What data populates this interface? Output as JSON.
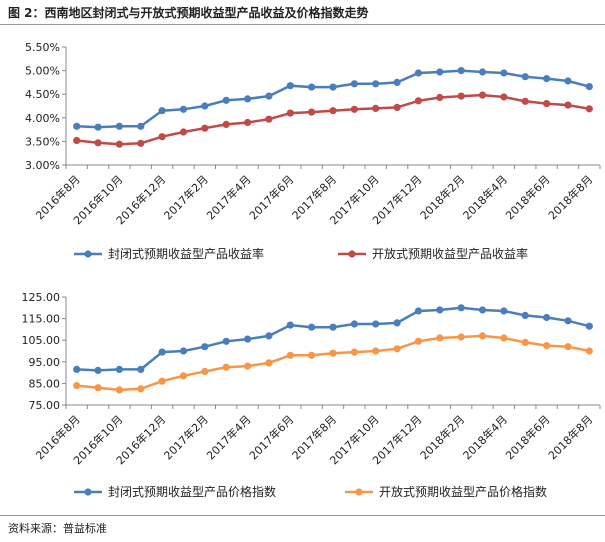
{
  "figure_title": "图 2：西南地区封闭式与开放式预期收益型产品收益及价格指数走势",
  "source_note": "资料来源：普益标准",
  "chart_data": [
    {
      "type": "line",
      "categories": [
        "2016年8月",
        "2016年9月",
        "2016年10月",
        "2016年11月",
        "2016年12月",
        "2017年1月",
        "2017年2月",
        "2017年3月",
        "2017年4月",
        "2017年5月",
        "2017年6月",
        "2017年7月",
        "2017年8月",
        "2017年9月",
        "2017年10月",
        "2017年11月",
        "2017年12月",
        "2018年1月",
        "2018年2月",
        "2018年3月",
        "2018年4月",
        "2018年5月",
        "2018年6月",
        "2018年7月",
        "2018年8月"
      ],
      "x_tick_labels": [
        "2016年8月",
        "2016年10月",
        "2016年12月",
        "2017年2月",
        "2017年4月",
        "2017年6月",
        "2017年8月",
        "2017年10月",
        "2017年12月",
        "2018年2月",
        "2018年4月",
        "2018年6月",
        "2018年8月"
      ],
      "y_tick_labels": [
        "3.00%",
        "3.50%",
        "4.00%",
        "4.50%",
        "5.00%",
        "5.50%"
      ],
      "ylim": [
        3.0,
        5.5
      ],
      "series": [
        {
          "name": "封闭式预期收益型产品收益率",
          "color": "#4a7ebb",
          "values": [
            3.82,
            3.8,
            3.82,
            3.82,
            4.15,
            4.18,
            4.25,
            4.37,
            4.4,
            4.46,
            4.68,
            4.65,
            4.65,
            4.72,
            4.72,
            4.75,
            4.95,
            4.97,
            5.0,
            4.97,
            4.95,
            4.87,
            4.83,
            4.78,
            4.66
          ]
        },
        {
          "name": "开放式预期收益型产品收益率",
          "color": "#be4b48",
          "values": [
            3.52,
            3.47,
            3.44,
            3.46,
            3.6,
            3.7,
            3.78,
            3.86,
            3.9,
            3.97,
            4.1,
            4.12,
            4.15,
            4.18,
            4.2,
            4.22,
            4.36,
            4.43,
            4.46,
            4.48,
            4.44,
            4.35,
            4.3,
            4.27,
            4.19
          ]
        }
      ]
    },
    {
      "type": "line",
      "categories": [
        "2016年8月",
        "2016年9月",
        "2016年10月",
        "2016年11月",
        "2016年12月",
        "2017年1月",
        "2017年2月",
        "2017年3月",
        "2017年4月",
        "2017年5月",
        "2017年6月",
        "2017年7月",
        "2017年8月",
        "2017年9月",
        "2017年10月",
        "2017年11月",
        "2017年12月",
        "2018年1月",
        "2018年2月",
        "2018年3月",
        "2018年4月",
        "2018年5月",
        "2018年6月",
        "2018年7月",
        "2018年8月"
      ],
      "x_tick_labels": [
        "2016年8月",
        "2016年10月",
        "2016年12月",
        "2017年2月",
        "2017年4月",
        "2017年6月",
        "2017年8月",
        "2017年10月",
        "2017年12月",
        "2018年2月",
        "2018年4月",
        "2018年6月",
        "2018年8月"
      ],
      "y_tick_labels": [
        "75.00",
        "85.00",
        "95.00",
        "105.00",
        "115.00",
        "125.00"
      ],
      "ylim": [
        75,
        125
      ],
      "series": [
        {
          "name": "封闭式预期收益型产品价格指数",
          "color": "#4a7ebb",
          "values": [
            91.5,
            91.0,
            91.5,
            91.5,
            99.5,
            100.0,
            102.0,
            104.5,
            105.5,
            107.0,
            112.0,
            111.0,
            111.0,
            112.5,
            112.5,
            113.0,
            118.5,
            119.0,
            120.0,
            119.0,
            118.5,
            116.5,
            115.5,
            114.0,
            111.5
          ]
        },
        {
          "name": "开放式预期收益型产品价格指数",
          "color": "#f79646",
          "values": [
            84.0,
            83.0,
            82.0,
            82.5,
            86.0,
            88.5,
            90.5,
            92.5,
            93.0,
            94.5,
            98.0,
            98.0,
            99.0,
            99.5,
            100.0,
            101.0,
            104.5,
            106.0,
            106.5,
            107.0,
            106.0,
            104.0,
            102.5,
            102.0,
            100.0
          ]
        }
      ]
    }
  ]
}
